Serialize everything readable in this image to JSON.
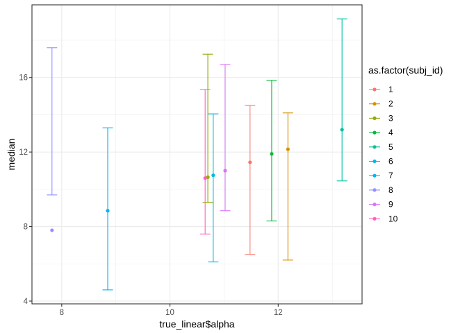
{
  "chart_data": {
    "type": "scatter",
    "error_bars": true,
    "xlabel": "true_linear$alpha",
    "ylabel": "median",
    "xlim": [
      7.45,
      13.55
    ],
    "ylim": [
      3.85,
      19.9
    ],
    "x_ticks": [
      8,
      10,
      12
    ],
    "y_ticks": [
      4,
      8,
      12,
      16
    ],
    "x_minor_ticks": [
      9,
      11,
      13
    ],
    "y_minor_ticks": [
      6,
      10,
      14,
      18
    ],
    "grid": true,
    "legend": {
      "title": "as.factor(subj_id)",
      "position": "right"
    },
    "series": [
      {
        "name": "1",
        "color": "#F8766D",
        "x": 11.48,
        "y": 11.45,
        "ymin": 6.5,
        "ymax": 14.5
      },
      {
        "name": "2",
        "color": "#D39200",
        "x": 12.18,
        "y": 12.15,
        "ymin": 6.2,
        "ymax": 14.1
      },
      {
        "name": "3",
        "color": "#93AA00",
        "x": 10.7,
        "y": 10.65,
        "ymin": 9.3,
        "ymax": 17.25
      },
      {
        "name": "4",
        "color": "#00BA38",
        "x": 11.88,
        "y": 11.9,
        "ymin": 8.3,
        "ymax": 15.85
      },
      {
        "name": "5",
        "color": "#00C19F",
        "x": 13.18,
        "y": 13.2,
        "ymin": 10.45,
        "ymax": 19.15
      },
      {
        "name": "6",
        "color": "#00B9E3",
        "x": 10.8,
        "y": 10.75,
        "ymin": 6.1,
        "ymax": 14.05
      },
      {
        "name": "7",
        "color": "#00B4EF",
        "x": 8.85,
        "y": 8.85,
        "ymin": 4.6,
        "ymax": 13.3
      },
      {
        "name": "8",
        "color": "#9590FF",
        "x": 7.82,
        "y": 7.8,
        "ymin": 9.7,
        "ymax": 17.6
      },
      {
        "name": "9",
        "color": "#DB72FB",
        "x": 11.02,
        "y": 11.0,
        "ymin": 8.85,
        "ymax": 16.7
      },
      {
        "name": "10",
        "color": "#FF61C3",
        "x": 10.65,
        "y": 10.6,
        "ymin": 7.6,
        "ymax": 15.35
      }
    ]
  }
}
